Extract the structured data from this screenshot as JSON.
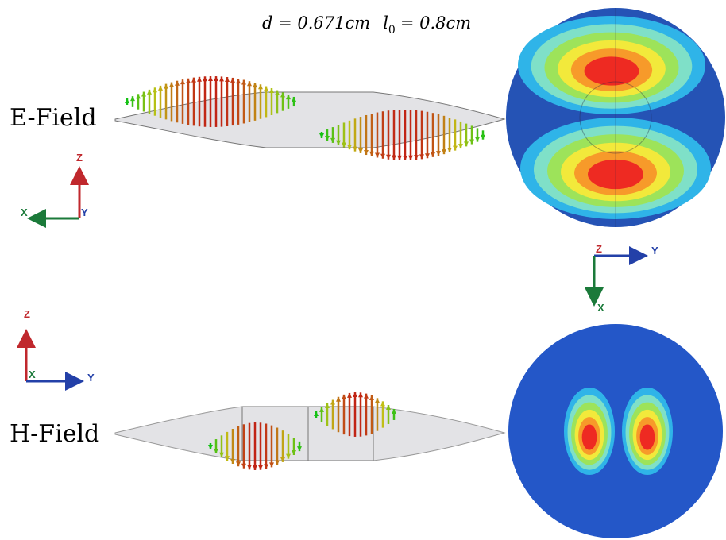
{
  "header": {
    "d": "d = 0.671cm",
    "l": "l",
    "l_sub": "0",
    "l_rest": "= 0.8cm"
  },
  "panels": [
    {
      "label": "E-Field"
    },
    {
      "label": "H-Field"
    }
  ],
  "axes": {
    "e_field": {
      "z": "Z",
      "x": "X",
      "y": "Y"
    },
    "cross_section": {
      "z": "Z",
      "y": "Y",
      "x": "X"
    },
    "h_field": {
      "z": "Z",
      "x": "X",
      "y": "Y"
    }
  }
}
